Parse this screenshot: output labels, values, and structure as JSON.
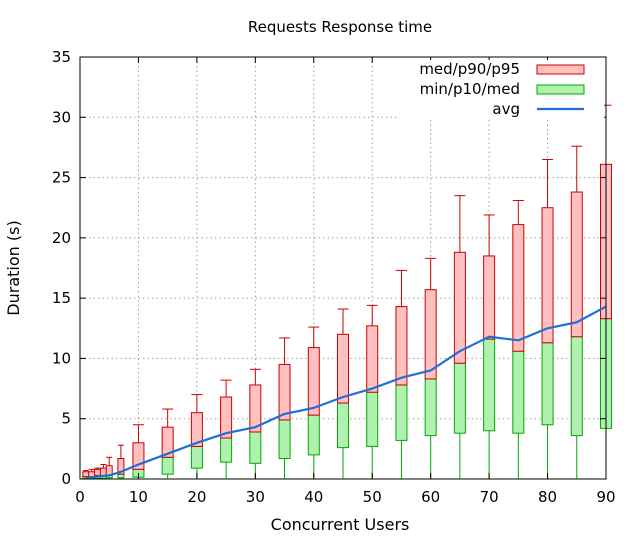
{
  "chart_data": {
    "type": "candlestick",
    "title": "Requests Response time",
    "xlabel": "Concurrent Users",
    "ylabel": "Duration (s)",
    "xlim": [
      0,
      90
    ],
    "ylim": [
      0,
      35
    ],
    "xticks": [
      0,
      10,
      20,
      30,
      40,
      50,
      60,
      70,
      80,
      90
    ],
    "yticks": [
      0,
      5,
      10,
      15,
      20,
      25,
      30,
      35
    ],
    "grid": true,
    "legend_position": "top-right",
    "legend": [
      {
        "label": "med/p90/p95",
        "kind": "upper-box"
      },
      {
        "label": "min/p10/med",
        "kind": "lower-box"
      },
      {
        "label": "avg",
        "kind": "line"
      }
    ],
    "colors": {
      "upper_fill": "#ffc0c0",
      "upper_stroke": "#cc0000",
      "lower_fill": "#b0f0b0",
      "lower_stroke": "#00aa00",
      "avg_line": "#1e6fd9",
      "grid": "#a0a0a0"
    },
    "x": [
      1,
      2,
      3,
      4,
      5,
      7,
      10,
      15,
      20,
      25,
      30,
      35,
      40,
      45,
      50,
      55,
      60,
      65,
      70,
      75,
      80,
      85,
      90
    ],
    "min": [
      0.05,
      0.05,
      0.05,
      0.05,
      0.05,
      0.05,
      0.05,
      0.05,
      0.05,
      0.05,
      0.05,
      0.05,
      0.05,
      0.05,
      0.05,
      0.05,
      0.05,
      0.05,
      0.05,
      0.05,
      0.05,
      0.05,
      0.05
    ],
    "p10": [
      0.05,
      0.05,
      0.05,
      0.05,
      0.1,
      0.1,
      0.15,
      0.4,
      0.9,
      1.4,
      1.3,
      1.7,
      2.0,
      2.6,
      2.7,
      3.2,
      3.6,
      3.8,
      4.0,
      3.8,
      4.5,
      3.6,
      4.2
    ],
    "med": [
      0.2,
      0.2,
      0.3,
      0.3,
      0.3,
      0.4,
      0.8,
      1.8,
      2.7,
      3.4,
      3.9,
      4.9,
      5.3,
      6.3,
      7.2,
      7.8,
      8.3,
      9.6,
      11.6,
      10.6,
      11.3,
      11.8,
      13.3
    ],
    "p90": [
      0.6,
      0.6,
      0.8,
      0.9,
      1.1,
      1.7,
      3.0,
      4.3,
      5.5,
      6.8,
      7.8,
      9.5,
      10.9,
      12.0,
      12.7,
      14.3,
      15.7,
      18.8,
      18.5,
      21.1,
      22.5,
      23.8,
      26.1
    ],
    "p95": [
      0.7,
      0.8,
      0.9,
      1.2,
      1.8,
      2.8,
      4.5,
      5.8,
      7.0,
      8.2,
      9.1,
      11.7,
      12.6,
      14.1,
      14.4,
      17.3,
      18.3,
      23.5,
      21.9,
      23.1,
      26.5,
      27.6,
      31.0
    ],
    "avg": [
      0.1,
      0.15,
      0.2,
      0.25,
      0.3,
      0.6,
      1.2,
      2.1,
      3.0,
      3.8,
      4.3,
      5.4,
      5.9,
      6.8,
      7.5,
      8.4,
      9.0,
      10.6,
      11.8,
      11.5,
      12.5,
      13.0,
      14.3
    ]
  }
}
